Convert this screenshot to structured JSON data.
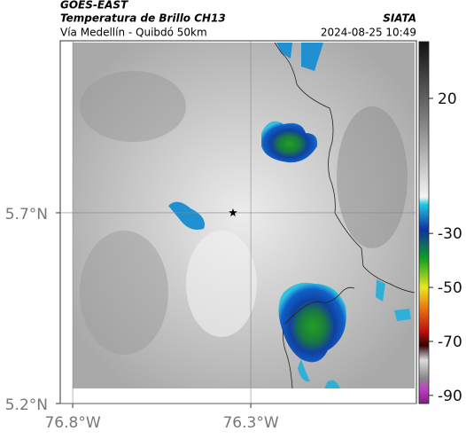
{
  "header": {
    "title": "GOES-EAST",
    "subtitle": "Temperatura de Brillo CH13",
    "caption": "Vía Medellín - Quibdó 50km",
    "source": "SIATA",
    "timestamp": "2024-08-25 10:49"
  },
  "map": {
    "xlim": [
      -76.835,
      -75.835
    ],
    "ylim": [
      5.2,
      6.151
    ],
    "lon_ticks": [
      {
        "value": -76.8,
        "label": "76.8°W"
      },
      {
        "value": -76.3,
        "label": "76.3°W"
      }
    ],
    "lat_ticks": [
      {
        "value": 5.7,
        "label": "5.7°N"
      },
      {
        "value": 5.2,
        "label": "5.2°N"
      }
    ],
    "marker": {
      "lon": -76.35,
      "lat": 5.7
    }
  },
  "colorbar": {
    "clim": [
      -93,
      41
    ],
    "ticks": [
      20,
      -30,
      -50,
      -70,
      -90
    ]
  }
}
